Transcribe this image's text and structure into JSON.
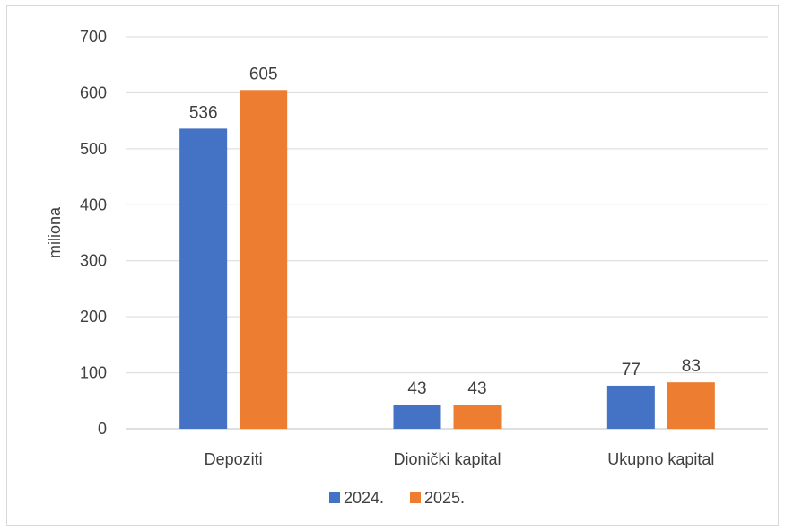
{
  "chart_data": {
    "type": "bar",
    "title": "",
    "xlabel": "",
    "ylabel": "miliona",
    "ylim": [
      0,
      700
    ],
    "yticks": [
      0,
      100,
      200,
      300,
      400,
      500,
      600,
      700
    ],
    "categories": [
      "Depoziti",
      "Dionički kapital",
      "Ukupno kapital"
    ],
    "series": [
      {
        "name": "2024.",
        "values": [
          536,
          43,
          77
        ],
        "color": "#4472c4"
      },
      {
        "name": "2025.",
        "values": [
          605,
          43,
          83
        ],
        "color": "#ed7d31"
      }
    ],
    "grid": true,
    "legend_position": "bottom",
    "data_labels": true
  }
}
